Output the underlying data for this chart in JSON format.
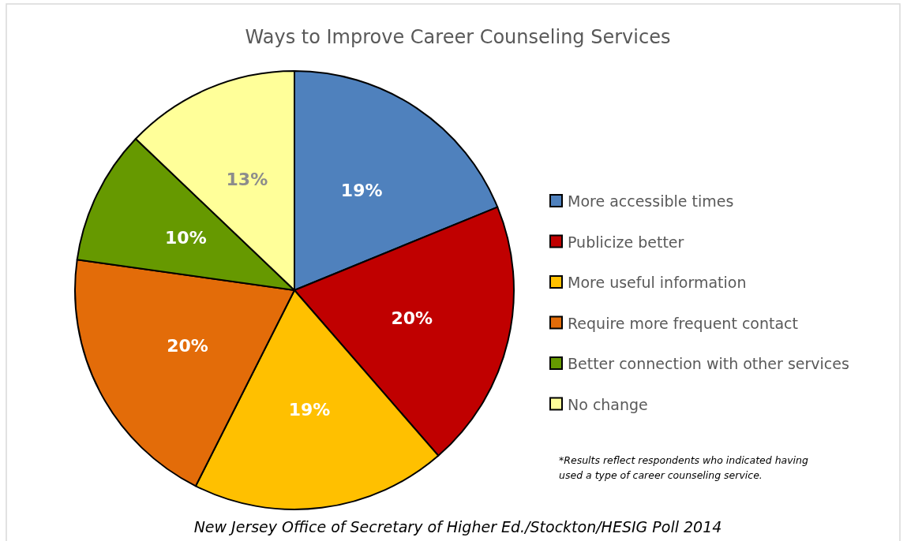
{
  "chart_data": {
    "type": "pie",
    "title": "Ways to Improve Career Counseling Services",
    "categories": [
      "More accessible times",
      "Publicize better",
      "More useful information",
      "Require more frequent contact",
      "Better connection with other services",
      "No change"
    ],
    "values": [
      19,
      20,
      19,
      20,
      10,
      13
    ],
    "colors": [
      "#4f81bd",
      "#c00000",
      "#ffc000",
      "#e36c09",
      "#669900",
      "#ffff99"
    ],
    "value_labels": [
      "19%",
      "20%",
      "19%",
      "20%",
      "10%",
      "13%"
    ],
    "legend": "right",
    "annotations": [
      "*Results reflect respondents who indicated having used a type of career counseling service.",
      "New Jersey Office of Secretary of Higher Ed./Stockton/HESIG Poll 2014"
    ]
  }
}
